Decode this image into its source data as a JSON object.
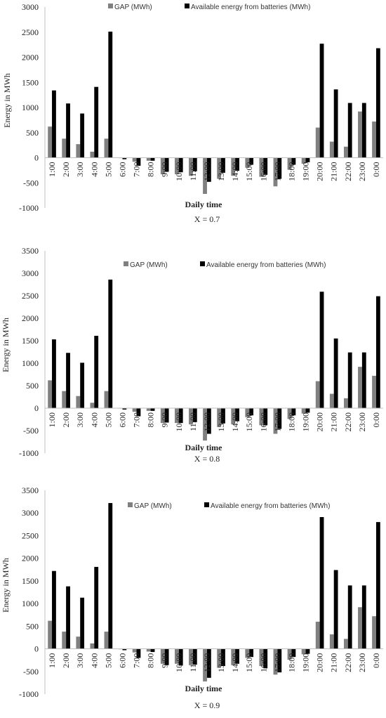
{
  "chart_data": [
    {
      "type": "bar",
      "categories": [
        "1:00",
        "2:00",
        "3:00",
        "4:00",
        "5:00",
        "6:00",
        "7:00",
        "8:00",
        "9:00",
        "10:00",
        "11:00",
        "12:00",
        "13:00",
        "14:00",
        "15:00",
        "16:00",
        "17:00",
        "18:00",
        "19:00",
        "20:00",
        "21:00",
        "22:00",
        "23:00",
        "0:00"
      ],
      "series": [
        {
          "name": "GAP (MWh)",
          "color": "#808080",
          "values": [
            620,
            380,
            270,
            120,
            380,
            0,
            -80,
            -60,
            -330,
            -330,
            -360,
            -720,
            -420,
            -360,
            -200,
            -380,
            -570,
            -240,
            -120,
            600,
            320,
            220,
            920,
            720
          ]
        },
        {
          "name": "Available energy from batteries (MWh)",
          "color": "#000000",
          "values": [
            1340,
            1080,
            880,
            1410,
            2510,
            -30,
            -160,
            -60,
            -280,
            -290,
            -270,
            -480,
            -300,
            -260,
            -140,
            -340,
            -420,
            -140,
            -90,
            2270,
            1360,
            1090,
            1090,
            2180
          ]
        }
      ],
      "xlabel": "Daily time",
      "ylabel": "Energy in MWh",
      "caption": "X = 0.7",
      "ylim": [
        -1000,
        3000
      ],
      "yticks": [
        -1000,
        -500,
        0,
        500,
        1000,
        1500,
        2000,
        2500,
        3000
      ],
      "legend_position": "top"
    },
    {
      "type": "bar",
      "categories": [
        "1:00",
        "2:00",
        "3:00",
        "4:00",
        "5:00",
        "6:00",
        "7:00",
        "8:00",
        "9:00",
        "10:00",
        "11:00",
        "12:00",
        "13:00",
        "14:00",
        "15:00",
        "16:00",
        "17:00",
        "18:00",
        "19:00",
        "20:00",
        "21:00",
        "22:00",
        "23:00",
        "0:00"
      ],
      "series": [
        {
          "name": "GAP (MWh)",
          "color": "#808080",
          "values": [
            620,
            380,
            270,
            120,
            380,
            0,
            -80,
            -60,
            -330,
            -330,
            -360,
            -720,
            -420,
            -360,
            -200,
            -380,
            -570,
            -240,
            -120,
            600,
            320,
            220,
            920,
            720
          ]
        },
        {
          "name": "Available energy from batteries (MWh)",
          "color": "#000000",
          "values": [
            1530,
            1230,
            1010,
            1610,
            2860,
            -30,
            -180,
            -60,
            -320,
            -330,
            -310,
            -570,
            -340,
            -290,
            -160,
            -380,
            -460,
            -160,
            -100,
            2590,
            1550,
            1240,
            1240,
            2490
          ]
        }
      ],
      "xlabel": "Daily time",
      "ylabel": "Energy in MWh",
      "caption": "X = 0.8",
      "ylim": [
        -1000,
        3500
      ],
      "yticks": [
        -1000,
        -500,
        0,
        500,
        1000,
        1500,
        2000,
        2500,
        3000,
        3500
      ],
      "legend_position": "top"
    },
    {
      "type": "bar",
      "categories": [
        "1:00",
        "2:00",
        "3:00",
        "4:00",
        "5:00",
        "6:00",
        "7:00",
        "8:00",
        "9:00",
        "10:00",
        "11:00",
        "12:00",
        "13:00",
        "14:00",
        "15:00",
        "16:00",
        "17:00",
        "18:00",
        "19:00",
        "20:00",
        "21:00",
        "22:00",
        "23:00",
        "0:00"
      ],
      "series": [
        {
          "name": "GAP (MWh)",
          "color": "#808080",
          "values": [
            620,
            380,
            270,
            120,
            380,
            0,
            -80,
            -60,
            -330,
            -330,
            -360,
            -720,
            -420,
            -360,
            -200,
            -380,
            -570,
            -240,
            -120,
            600,
            320,
            220,
            920,
            720
          ]
        },
        {
          "name": "Available energy from batteries (MWh)",
          "color": "#000000",
          "values": [
            1720,
            1380,
            1130,
            1810,
            3220,
            -30,
            -200,
            -70,
            -360,
            -370,
            -350,
            -640,
            -380,
            -330,
            -180,
            -430,
            -520,
            -180,
            -110,
            2910,
            1740,
            1400,
            1400,
            2800
          ]
        }
      ],
      "xlabel": "Daily time",
      "ylabel": "Energy in MWh",
      "caption": "X = 0.9",
      "ylim": [
        -1000,
        3500
      ],
      "yticks": [
        -1000,
        -500,
        0,
        500,
        1000,
        1500,
        2000,
        2500,
        3000,
        3500
      ],
      "legend_position": "top"
    }
  ]
}
